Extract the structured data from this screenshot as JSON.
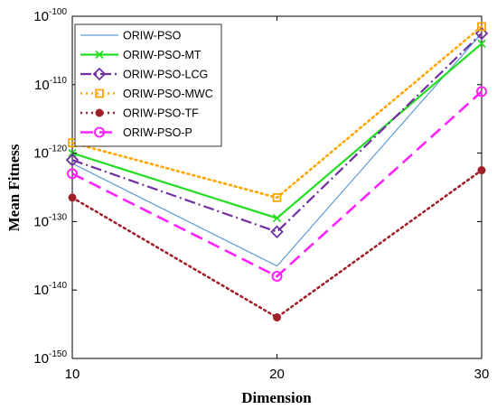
{
  "chart_data": {
    "type": "line",
    "xlabel": "Dimension",
    "ylabel": "Mean Fitness",
    "y_scale": "log",
    "x": [
      10,
      20,
      30
    ],
    "xlim": [
      10,
      30
    ],
    "ylim": [
      1e-150,
      1e-100
    ],
    "x_ticks": [
      "10",
      "20",
      "30"
    ],
    "y_ticks": [
      {
        "base": "10",
        "exp": "-100"
      },
      {
        "base": "10",
        "exp": "-110"
      },
      {
        "base": "10",
        "exp": "-120"
      },
      {
        "base": "10",
        "exp": "-130"
      },
      {
        "base": "10",
        "exp": "-140"
      },
      {
        "base": "10",
        "exp": "-150"
      }
    ],
    "y_tick_exponents": [
      -100,
      -110,
      -120,
      -130,
      -140,
      -150
    ],
    "grid": false,
    "legend_position": "top-left",
    "series": [
      {
        "name": "ORIW-PSO",
        "values_log10": [
          -121.5,
          -136.5,
          -102.5
        ],
        "color": "#5b9bd5",
        "line": "solid",
        "marker": "none"
      },
      {
        "name": "ORIW-PSO-MT",
        "values_log10": [
          -120.0,
          -129.5,
          -104.0
        ],
        "color": "#22dd22",
        "line": "solid",
        "marker": "x"
      },
      {
        "name": "ORIW-PSO-LCG",
        "values_log10": [
          -121.0,
          -131.5,
          -102.5
        ],
        "color": "#7030a0",
        "line": "dashdot",
        "marker": "diamond"
      },
      {
        "name": "ORIW-PSO-MWC",
        "values_log10": [
          -118.5,
          -126.5,
          -101.5
        ],
        "color": "#ffa500",
        "line": "dotted",
        "marker": "square"
      },
      {
        "name": "ORIW-PSO-TF",
        "values_log10": [
          -126.5,
          -144.0,
          -122.5
        ],
        "color": "#a0202a",
        "line": "dotted",
        "marker": "circle-filled"
      },
      {
        "name": "ORIW-PSO-P",
        "values_log10": [
          -123.0,
          -138.0,
          -111.0
        ],
        "color": "#ff22ff",
        "line": "dashed",
        "marker": "circle-open"
      }
    ]
  }
}
